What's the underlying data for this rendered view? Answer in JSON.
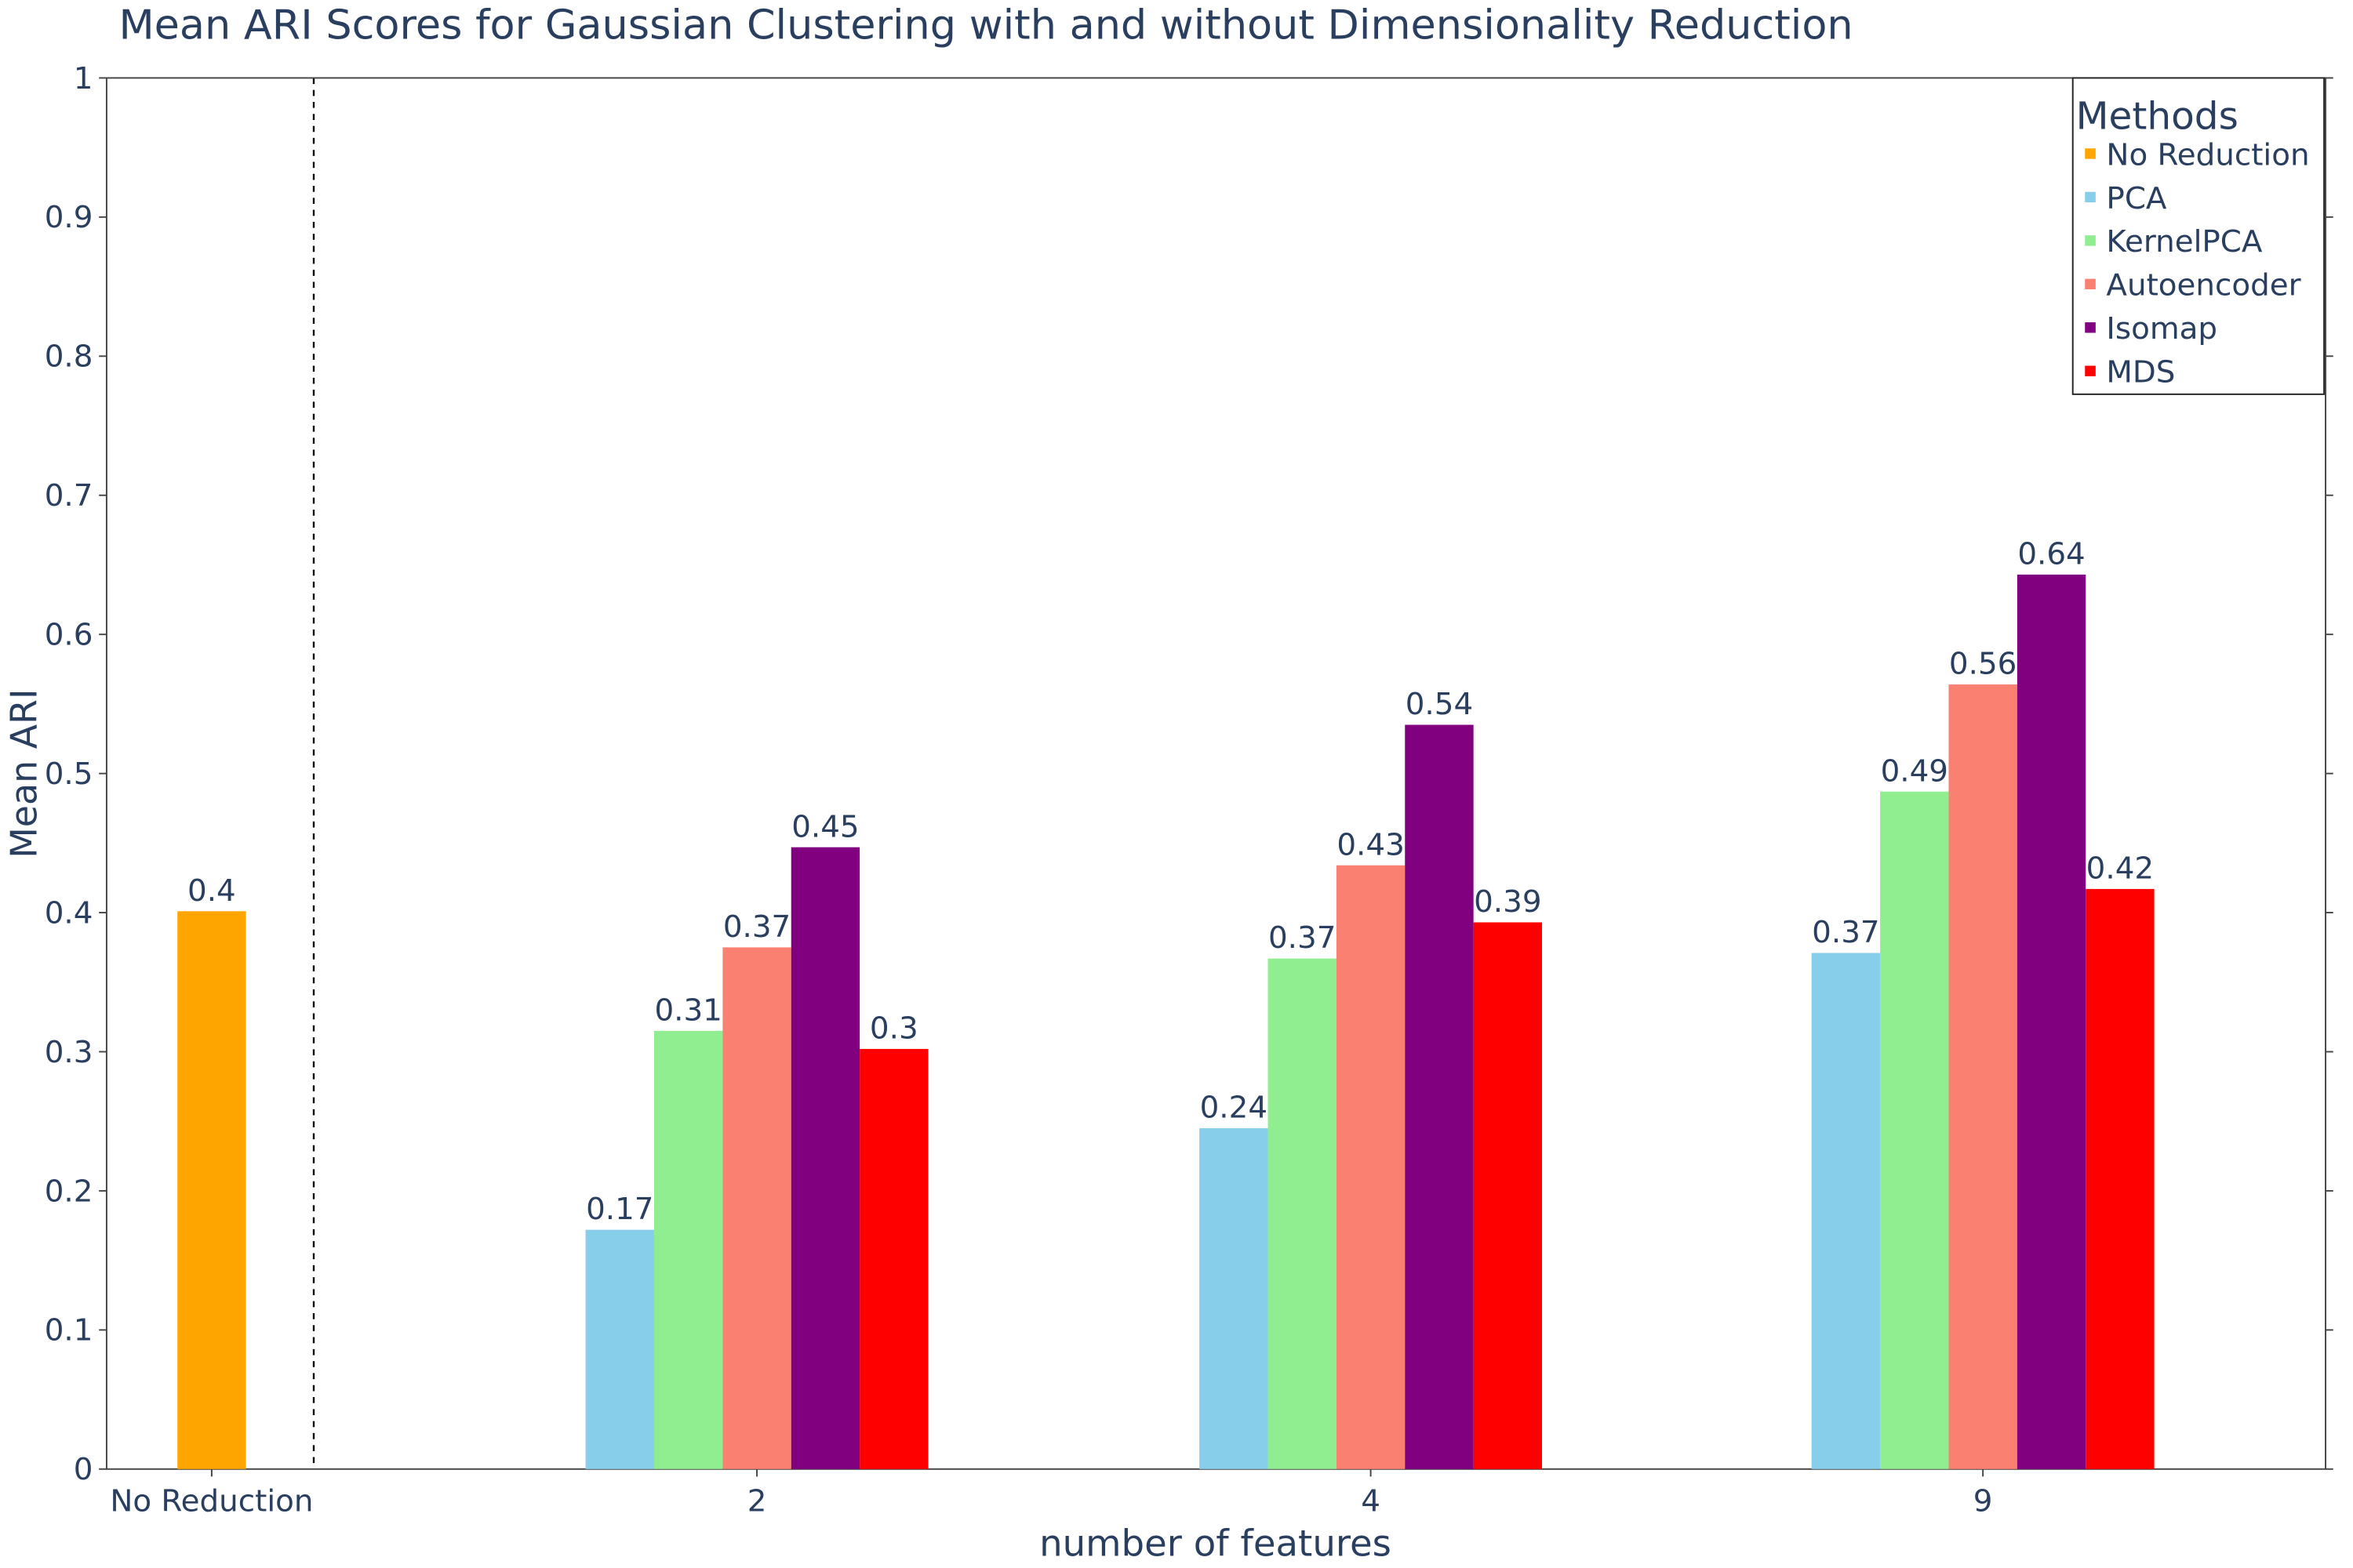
{
  "chart_data": {
    "type": "bar",
    "title": "Mean ARI Scores for Gaussian Clustering with and without Dimensionality Reduction",
    "xlabel": "number of features",
    "ylabel": "Mean ARI",
    "categories": [
      "No Reduction",
      "2",
      "4",
      "9"
    ],
    "series": [
      {
        "name": "No Reduction",
        "color": "#ffa500",
        "values": [
          0.401,
          null,
          null,
          null
        ],
        "value_labels": [
          "0.4",
          null,
          null,
          null
        ]
      },
      {
        "name": "PCA",
        "color": "#87ceeb",
        "values": [
          null,
          0.172,
          0.245,
          0.371
        ],
        "value_labels": [
          null,
          "0.17",
          "0.24",
          "0.37"
        ]
      },
      {
        "name": "KernelPCA",
        "color": "#90ee90",
        "values": [
          null,
          0.315,
          0.367,
          0.487
        ],
        "value_labels": [
          null,
          "0.31",
          "0.37",
          "0.49"
        ]
      },
      {
        "name": "Autoencoder",
        "color": "#fa8072",
        "values": [
          null,
          0.375,
          0.434,
          0.564
        ],
        "value_labels": [
          null,
          "0.37",
          "0.43",
          "0.56"
        ]
      },
      {
        "name": "Isomap",
        "color": "#800080",
        "values": [
          null,
          0.447,
          0.535,
          0.643
        ],
        "value_labels": [
          null,
          "0.45",
          "0.54",
          "0.64"
        ]
      },
      {
        "name": "MDS",
        "color": "#ff0000",
        "values": [
          null,
          0.302,
          0.393,
          0.417
        ],
        "value_labels": [
          null,
          "0.3",
          "0.39",
          "0.42"
        ]
      }
    ],
    "ylim": [
      0,
      1
    ],
    "yticks": [
      0,
      0.1,
      0.2,
      0.3,
      0.4,
      0.5,
      0.6,
      0.7,
      0.8,
      0.9,
      1
    ],
    "grid": false,
    "legend_title": "Methods",
    "legend": "upper right"
  }
}
